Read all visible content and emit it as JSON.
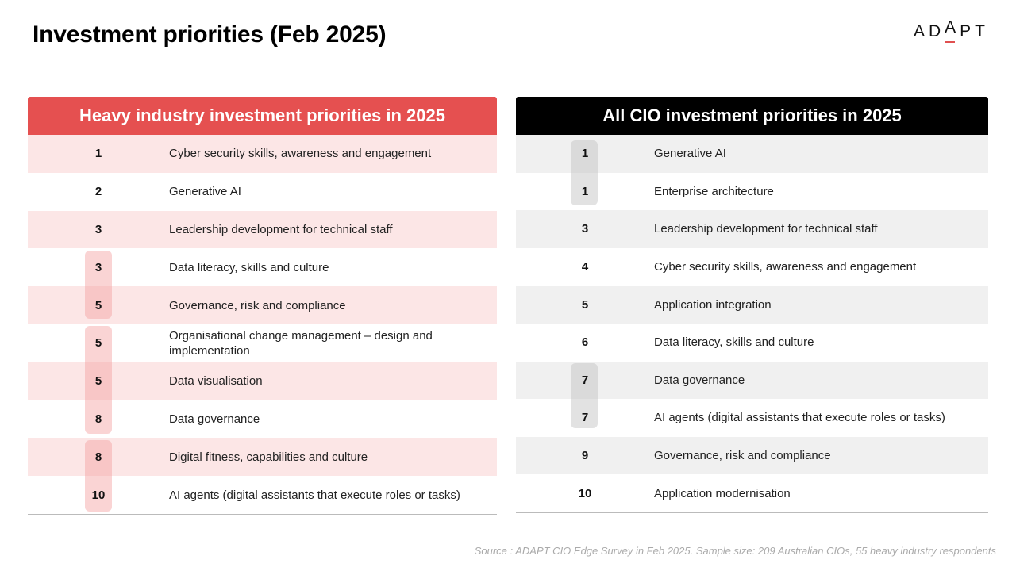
{
  "title": "Investment priorities (Feb 2025)",
  "logo": {
    "letters": [
      "A",
      "D",
      "A",
      "P",
      "T"
    ]
  },
  "left": {
    "heading": "Heavy industry investment priorities in 2025",
    "rows": [
      {
        "rank": "1",
        "label": "Cyber security skills, awareness and engagement"
      },
      {
        "rank": "2",
        "label": "Generative AI"
      },
      {
        "rank": "3",
        "label": "Leadership development for technical staff"
      },
      {
        "rank": "3",
        "label": "Data literacy, skills and culture"
      },
      {
        "rank": "5",
        "label": "Governance, risk and compliance"
      },
      {
        "rank": "5",
        "label": "Organisational change management – design and implementation"
      },
      {
        "rank": "5",
        "label": "Data visualisation"
      },
      {
        "rank": "8",
        "label": "Data governance"
      },
      {
        "rank": "8",
        "label": "Digital fitness, capabilities and culture"
      },
      {
        "rank": "10",
        "label": "AI agents (digital assistants that execute roles or tasks)"
      }
    ]
  },
  "right": {
    "heading": "All CIO investment priorities in 2025",
    "rows": [
      {
        "rank": "1",
        "label": "Generative AI"
      },
      {
        "rank": "1",
        "label": "Enterprise architecture"
      },
      {
        "rank": "3",
        "label": "Leadership development for technical staff"
      },
      {
        "rank": "4",
        "label": "Cyber security skills, awareness and engagement"
      },
      {
        "rank": "5",
        "label": "Application integration"
      },
      {
        "rank": "6",
        "label": "Data literacy, skills and culture"
      },
      {
        "rank": "7",
        "label": "Data governance"
      },
      {
        "rank": "7",
        "label": "AI agents (digital assistants that execute roles or tasks)"
      },
      {
        "rank": "9",
        "label": "Governance, risk and compliance"
      },
      {
        "rank": "10",
        "label": "Application modernisation"
      }
    ]
  },
  "source": "Source : ADAPT CIO Edge Survey in Feb 2025. Sample size: 209 Australian CIOs, 55 heavy industry respondents"
}
